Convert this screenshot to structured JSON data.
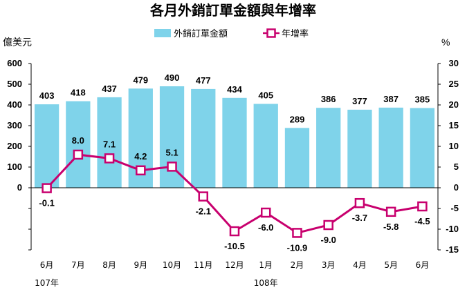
{
  "chart_data": {
    "type": "bar",
    "title": "各月外銷訂單金額與年增率",
    "left_unit": "億美元",
    "right_unit": "%",
    "categories": [
      "6月",
      "7月",
      "8月",
      "9月",
      "10月",
      "11月",
      "12月",
      "1月",
      "2月",
      "3月",
      "4月",
      "5月",
      "6月"
    ],
    "year_labels": [
      {
        "text": "107年",
        "index": 0
      },
      {
        "text": "108年",
        "index": 7
      }
    ],
    "series": [
      {
        "name": "外銷訂單金額",
        "type": "bar",
        "axis": "left",
        "color": "#7FD3EA",
        "values": [
          403,
          418,
          437,
          479,
          490,
          477,
          434,
          405,
          289,
          386,
          377,
          387,
          385
        ]
      },
      {
        "name": "年增率",
        "type": "line",
        "axis": "right",
        "color": "#C8006E",
        "values": [
          -0.1,
          8.0,
          7.1,
          4.2,
          5.1,
          -2.1,
          -10.5,
          -6.0,
          -10.9,
          -9.0,
          -3.7,
          -5.8,
          -4.5
        ]
      }
    ],
    "bar_labels": [
      "403",
      "418",
      "437",
      "479",
      "490",
      "477",
      "434",
      "405",
      "289",
      "386",
      "377",
      "387",
      "385"
    ],
    "line_labels": [
      "-0.1",
      "8.0",
      "7.1",
      "4.2",
      "5.1",
      "-2.1",
      "-10.5",
      "-6.0",
      "-10.9",
      "-9.0",
      "-3.7",
      "-5.8",
      "-4.5"
    ],
    "left_axis": {
      "ticks": [
        "0",
        "100",
        "200",
        "300",
        "400",
        "500",
        "600"
      ],
      "tick_values": [
        0,
        100,
        200,
        300,
        400,
        500,
        600
      ],
      "ylim": [
        -300,
        600
      ]
    },
    "right_axis": {
      "ticks": [
        "-15",
        "-10",
        "-5",
        "0",
        "5",
        "10",
        "15",
        "20",
        "25",
        "30"
      ],
      "tick_values": [
        -15,
        -10,
        -5,
        0,
        5,
        10,
        15,
        20,
        25,
        30
      ],
      "ylim": [
        -15,
        30
      ]
    },
    "legend_position": "top",
    "grid": false
  }
}
